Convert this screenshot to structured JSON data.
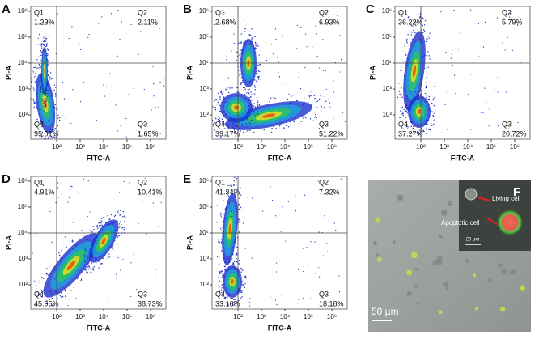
{
  "panels": [
    {
      "letter": "A",
      "x_label": "FITC-A",
      "y_label": "PI-A",
      "quadrants": [
        {
          "name": "Q1",
          "percent": "1.23%"
        },
        {
          "name": "Q2",
          "percent": "2.11%"
        },
        {
          "name": "Q3",
          "percent": "1.65%"
        },
        {
          "name": "Q4",
          "percent": "95.01%"
        }
      ]
    },
    {
      "letter": "B",
      "x_label": "FITC-A",
      "y_label": "PI-A",
      "quadrants": [
        {
          "name": "Q1",
          "percent": "2.68%"
        },
        {
          "name": "Q2",
          "percent": "6.93%"
        },
        {
          "name": "Q3",
          "percent": "51.22%"
        },
        {
          "name": "Q4",
          "percent": "39.17%"
        }
      ]
    },
    {
      "letter": "C",
      "x_label": "FITC-A",
      "y_label": "PI-A",
      "quadrants": [
        {
          "name": "Q1",
          "percent": "36.22%"
        },
        {
          "name": "Q2",
          "percent": "5.79%"
        },
        {
          "name": "Q3",
          "percent": "20.72%"
        },
        {
          "name": "Q4",
          "percent": "37.27%"
        }
      ]
    },
    {
      "letter": "D",
      "x_label": "FITC-A",
      "y_label": "PI-A",
      "quadrants": [
        {
          "name": "Q1",
          "percent": "4.91%"
        },
        {
          "name": "Q2",
          "percent": "10.41%"
        },
        {
          "name": "Q3",
          "percent": "38.73%"
        },
        {
          "name": "Q4",
          "percent": "45.95%"
        }
      ]
    },
    {
      "letter": "E",
      "x_label": "FITC-A",
      "y_label": "PI-A",
      "quadrants": [
        {
          "name": "Q1",
          "percent": "41.34%"
        },
        {
          "name": "Q2",
          "percent": "7.32%"
        },
        {
          "name": "Q3",
          "percent": "18.18%"
        },
        {
          "name": "Q4",
          "percent": "33.16%"
        }
      ]
    }
  ],
  "x_ticks": [
    "10²",
    "10³",
    "10⁴",
    "10⁵",
    "10⁶"
  ],
  "y_ticks": [
    "10²",
    "10³",
    "10⁴",
    "10⁵",
    "10⁶"
  ],
  "image": {
    "letter": "F",
    "living_label": "Living cell",
    "apoptotic_label": "Apoptotic cell",
    "inset_scale": "20 μm",
    "scale": "50 μm"
  }
}
